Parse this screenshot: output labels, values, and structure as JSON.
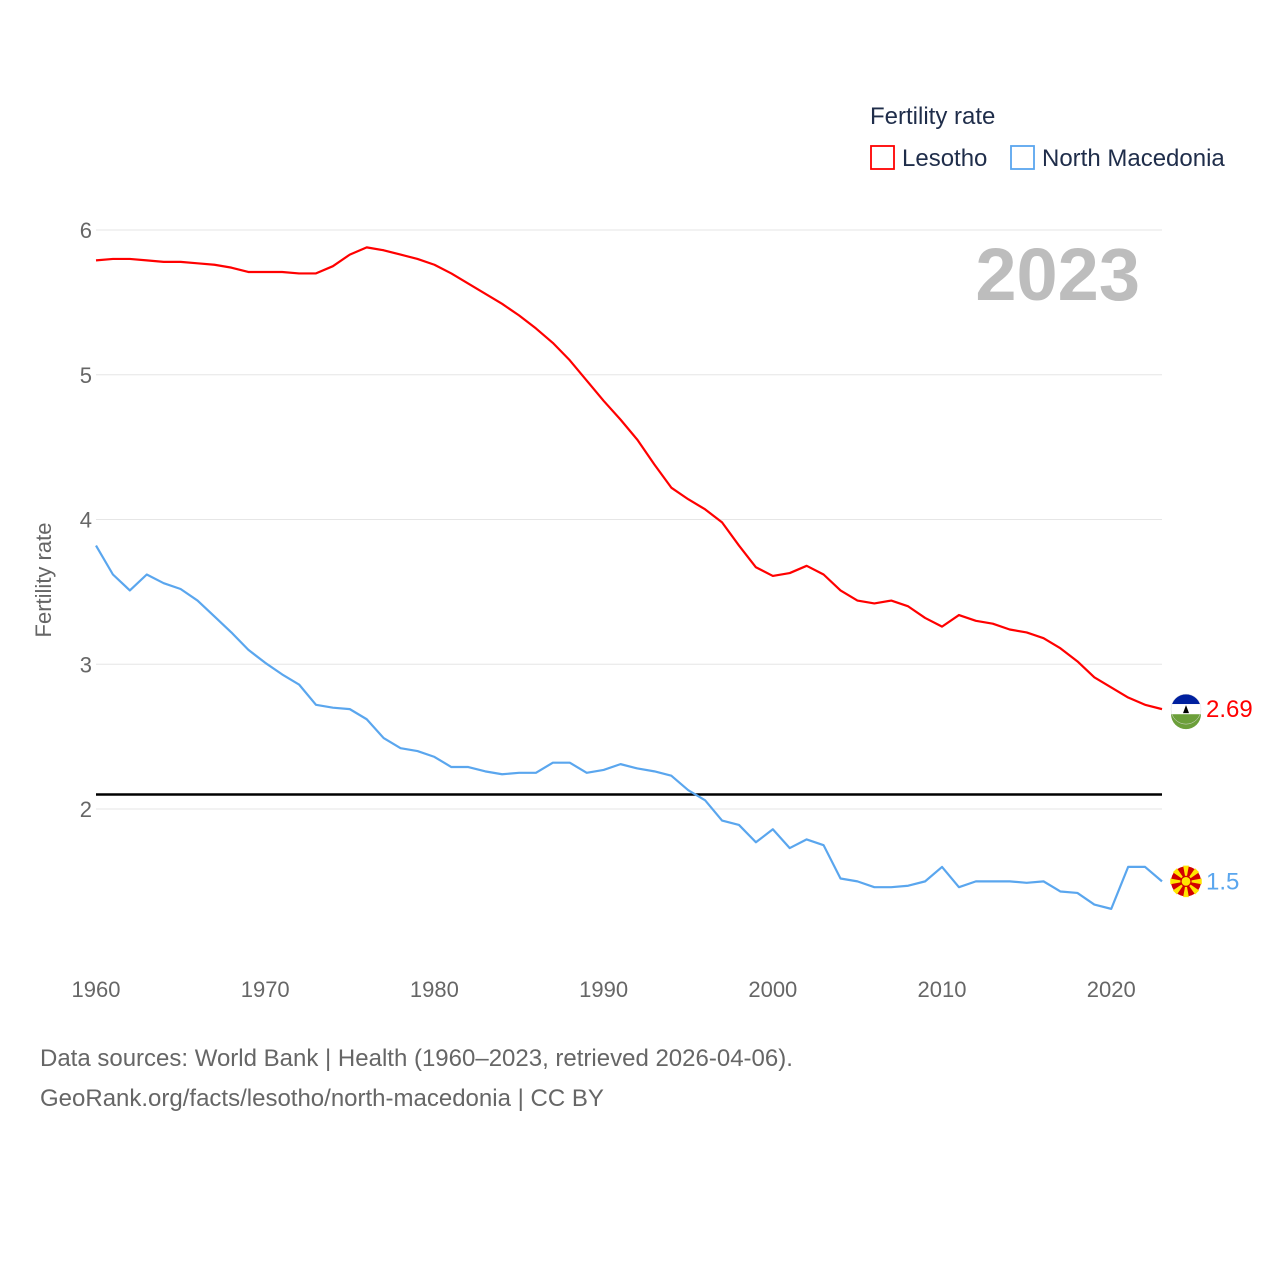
{
  "chart_data": {
    "type": "line",
    "title": "",
    "ylabel": "Fertility rate",
    "xlabel": "",
    "xlim": [
      1960,
      2023
    ],
    "ylim": [
      1.0,
      6.0
    ],
    "yticks": [
      2,
      3,
      4,
      5,
      6
    ],
    "xticks": [
      1960,
      1970,
      1980,
      1990,
      2000,
      2010,
      2020
    ],
    "grid": true,
    "year_label": "2023",
    "legend": {
      "title": "Fertility rate",
      "placement": "top-right"
    },
    "reference_line": {
      "y": 2.1,
      "color": "#000000"
    },
    "x": [
      1960,
      1961,
      1962,
      1963,
      1964,
      1965,
      1966,
      1967,
      1968,
      1969,
      1970,
      1971,
      1972,
      1973,
      1974,
      1975,
      1976,
      1977,
      1978,
      1979,
      1980,
      1981,
      1982,
      1983,
      1984,
      1985,
      1986,
      1987,
      1988,
      1989,
      1990,
      1991,
      1992,
      1993,
      1994,
      1995,
      1996,
      1997,
      1998,
      1999,
      2000,
      2001,
      2002,
      2003,
      2004,
      2005,
      2006,
      2007,
      2008,
      2009,
      2010,
      2011,
      2012,
      2013,
      2014,
      2015,
      2016,
      2017,
      2018,
      2019,
      2020,
      2021,
      2022,
      2023
    ],
    "series": [
      {
        "name": "Lesotho",
        "color": "#ff0000",
        "end_label": "2.69",
        "flag": "lesotho-flag",
        "values": [
          5.79,
          5.8,
          5.8,
          5.79,
          5.78,
          5.78,
          5.77,
          5.76,
          5.74,
          5.71,
          5.71,
          5.71,
          5.7,
          5.7,
          5.75,
          5.83,
          5.88,
          5.86,
          5.83,
          5.8,
          5.76,
          5.7,
          5.63,
          5.56,
          5.49,
          5.41,
          5.32,
          5.22,
          5.1,
          4.96,
          4.82,
          4.69,
          4.55,
          4.38,
          4.22,
          4.14,
          4.07,
          3.98,
          3.82,
          3.67,
          3.61,
          3.63,
          3.68,
          3.62,
          3.51,
          3.44,
          3.42,
          3.44,
          3.4,
          3.32,
          3.26,
          3.34,
          3.3,
          3.28,
          3.24,
          3.22,
          3.18,
          3.11,
          3.02,
          2.91,
          2.84,
          2.77,
          2.72,
          2.69
        ]
      },
      {
        "name": "North Macedonia",
        "color": "#5aa6ee",
        "end_label": "1.5",
        "flag": "north-macedonia-flag",
        "values": [
          3.82,
          3.62,
          3.51,
          3.62,
          3.56,
          3.52,
          3.44,
          3.33,
          3.22,
          3.1,
          3.01,
          2.93,
          2.86,
          2.72,
          2.7,
          2.69,
          2.62,
          2.49,
          2.42,
          2.4,
          2.36,
          2.29,
          2.29,
          2.26,
          2.24,
          2.25,
          2.25,
          2.32,
          2.32,
          2.25,
          2.27,
          2.31,
          2.28,
          2.26,
          2.23,
          2.13,
          2.06,
          1.92,
          1.89,
          1.77,
          1.86,
          1.73,
          1.79,
          1.75,
          1.52,
          1.5,
          1.46,
          1.46,
          1.47,
          1.5,
          1.6,
          1.46,
          1.5,
          1.5,
          1.5,
          1.49,
          1.5,
          1.43,
          1.42,
          1.34,
          1.31,
          1.6,
          1.6,
          1.5
        ]
      }
    ]
  },
  "footer": {
    "sources": "Data sources: World Bank | Health (1960–2023, retrieved 2026-04-06).",
    "credit": "GeoRank.org/facts/lesotho/north-macedonia | CC BY"
  }
}
